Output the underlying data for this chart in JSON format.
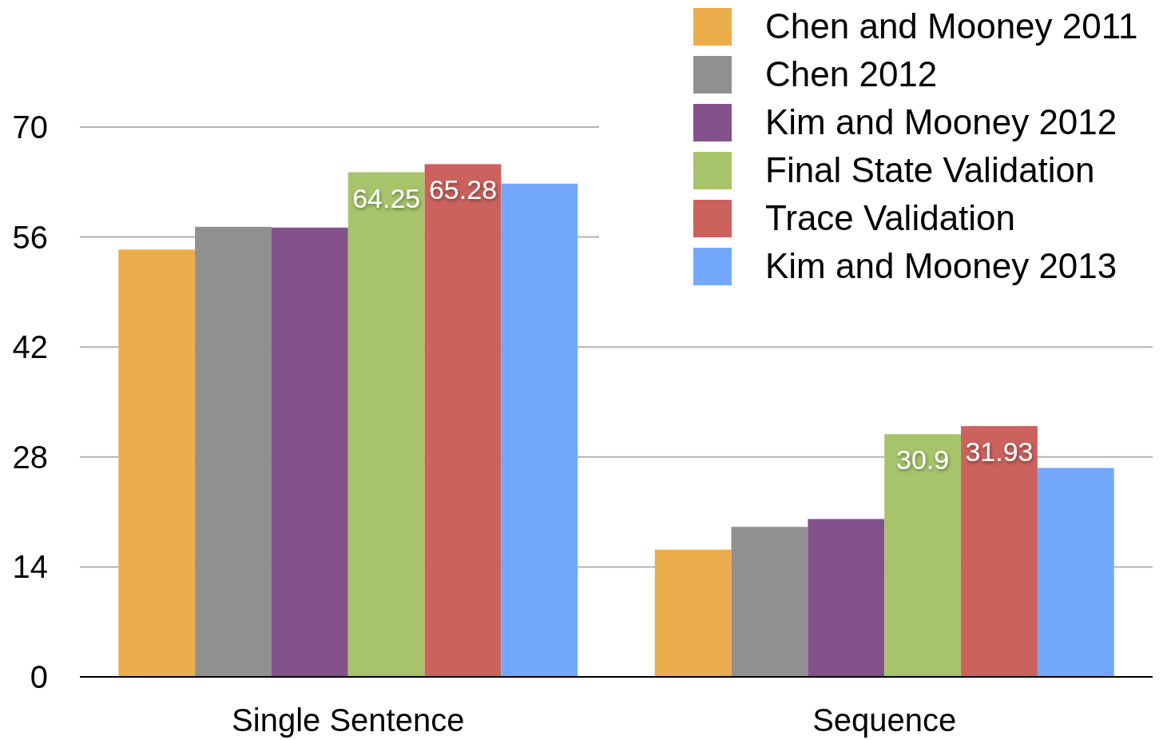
{
  "chart_data": {
    "type": "bar",
    "categories": [
      "Single Sentence",
      "Sequence"
    ],
    "series": [
      {
        "name": "Chen and Mooney 2011",
        "color": "#ecad4c",
        "values": [
          54.4,
          16.2
        ]
      },
      {
        "name": "Chen 2012",
        "color": "#8f908f",
        "values": [
          57.3,
          19.1
        ]
      },
      {
        "name": "Kim and Mooney 2012",
        "color": "#83518b",
        "values": [
          57.2,
          20.1
        ]
      },
      {
        "name": "Final State Validation",
        "color": "#a8c46b",
        "values": [
          64.25,
          30.9
        ],
        "value_labels": [
          "64.25",
          "30.9"
        ]
      },
      {
        "name": "Trace Validation",
        "color": "#cb625d",
        "values": [
          65.28,
          31.93
        ],
        "value_labels": [
          "65.28",
          "31.93"
        ]
      },
      {
        "name": "Kim and Mooney 2013",
        "color": "#73a8fc",
        "values": [
          62.8,
          26.6
        ]
      }
    ],
    "ylim": [
      0,
      70
    ],
    "yticks": [
      0,
      14,
      28,
      42,
      56,
      70
    ],
    "grid": "y",
    "legend": "top right"
  }
}
